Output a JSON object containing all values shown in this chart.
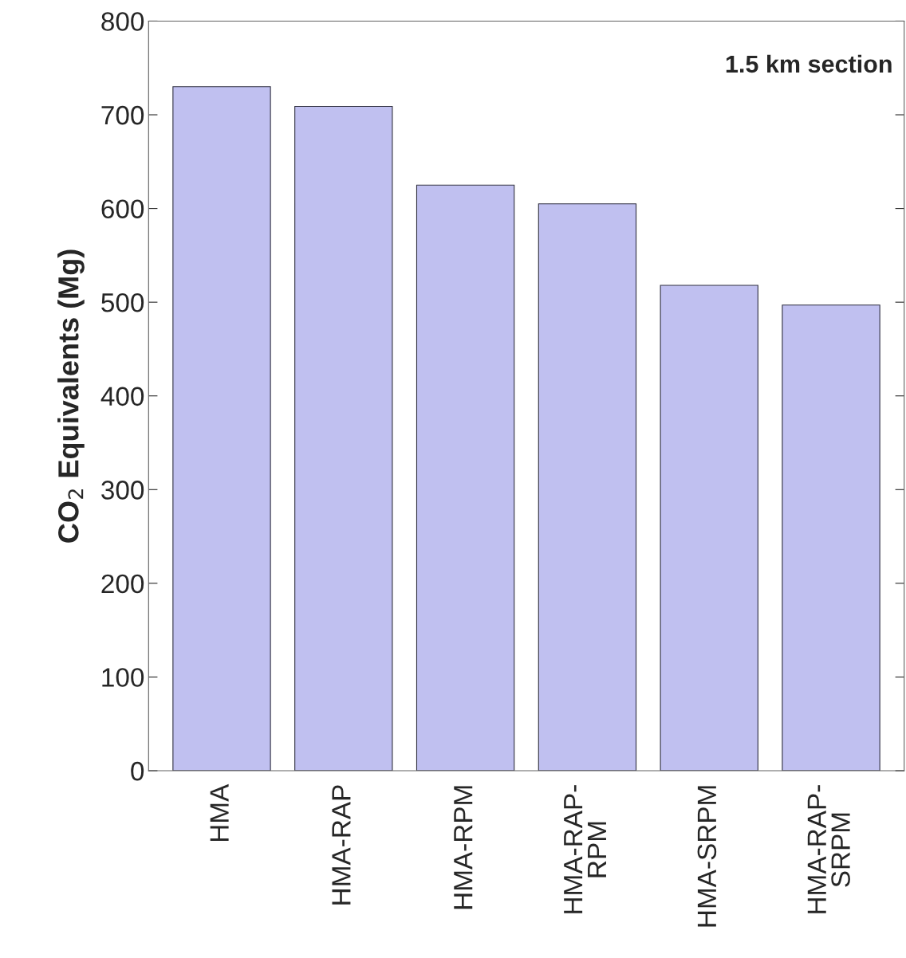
{
  "chart_data": {
    "type": "bar",
    "categories": [
      "HMA",
      "HMA-RAP",
      "HMA-RPM",
      "HMA-RAP-\nRPM",
      "HMA-SRPM",
      "HMA-RAP-\nSRPM"
    ],
    "values": [
      730,
      709,
      625,
      605,
      518,
      497
    ],
    "color": "#c0c0f0",
    "ylabel": "CO$_{2}$ Equivalents (Mg)",
    "ylim": [
      0,
      800
    ],
    "yticks": [
      0,
      100,
      200,
      300,
      400,
      500,
      600,
      700,
      800
    ],
    "annotations": [
      "1.5 km section"
    ],
    "grid": false,
    "legend": false
  }
}
